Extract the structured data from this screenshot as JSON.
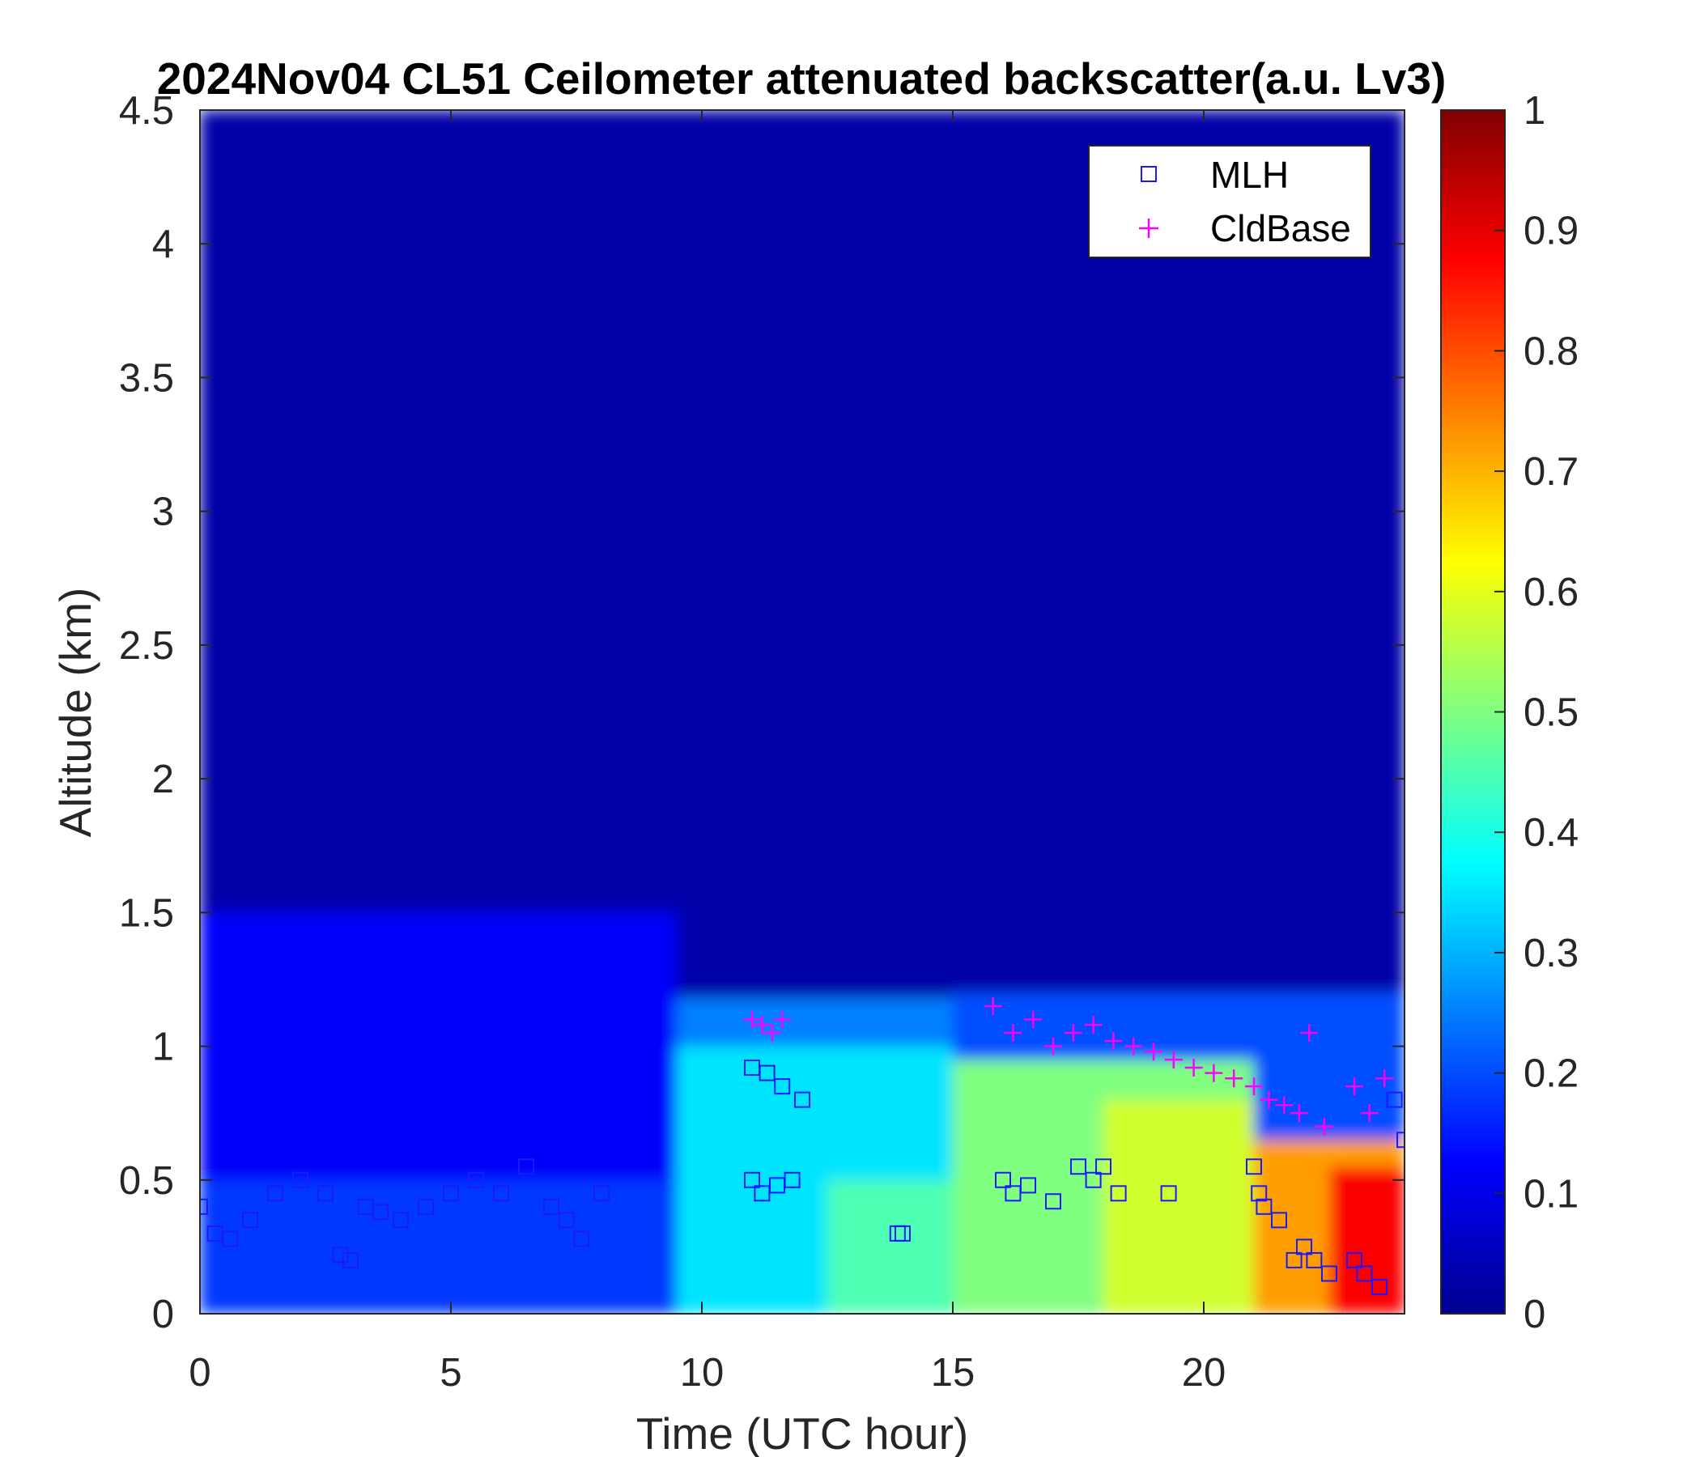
{
  "chart_data": {
    "type": "heatmap",
    "title": "2024Nov04 CL51 Ceilometer attenuated backscatter(a.u. Lv3)",
    "xlabel": "Time (UTC hour)",
    "ylabel": "Altitude (km)",
    "xlim": [
      0,
      24
    ],
    "ylim": [
      0,
      4.5
    ],
    "x_ticks": [
      "0",
      "5",
      "10",
      "15",
      "20"
    ],
    "y_ticks": [
      "0",
      "0.5",
      "1",
      "1.5",
      "2",
      "2.5",
      "3",
      "3.5",
      "4",
      "4.5"
    ],
    "colorbar": {
      "range": [
        0,
        1
      ],
      "ticks": [
        "0",
        "0.1",
        "0.2",
        "0.3",
        "0.4",
        "0.5",
        "0.6",
        "0.7",
        "0.8",
        "0.9",
        "1"
      ],
      "colormap": "jet"
    },
    "legend": {
      "placement": "top-right",
      "entries": [
        {
          "label": "MLH",
          "marker": "square",
          "color": "#1a1aff"
        },
        {
          "label": "CldBase",
          "marker": "plus",
          "color": "#ff00ff"
        }
      ]
    },
    "field_regions": [
      {
        "x0": 0,
        "x1": 24,
        "y0": 0,
        "y1": 4.5,
        "value": 0.04
      },
      {
        "x0": 0,
        "x1": 9.5,
        "y0": 0,
        "y1": 1.5,
        "value": 0.12
      },
      {
        "x0": 0,
        "x1": 9.5,
        "y0": 0,
        "y1": 0.5,
        "value": 0.18
      },
      {
        "x0": 9.5,
        "x1": 15,
        "y0": 0,
        "y1": 1.18,
        "value": 0.25
      },
      {
        "x0": 9.5,
        "x1": 15,
        "y0": 0,
        "y1": 1.0,
        "value": 0.35
      },
      {
        "x0": 12.5,
        "x1": 15,
        "y0": 0,
        "y1": 0.5,
        "value": 0.45
      },
      {
        "x0": 15,
        "x1": 24,
        "y0": 0,
        "y1": 1.2,
        "value": 0.2
      },
      {
        "x0": 15,
        "x1": 21,
        "y0": 0,
        "y1": 0.95,
        "value": 0.5
      },
      {
        "x0": 18,
        "x1": 21,
        "y0": 0,
        "y1": 0.8,
        "value": 0.58
      },
      {
        "x0": 21,
        "x1": 24,
        "y0": 0,
        "y1": 0.65,
        "value": 0.72
      },
      {
        "x0": 22.5,
        "x1": 24,
        "y0": 0,
        "y1": 0.55,
        "value": 0.88
      }
    ],
    "series": [
      {
        "name": "MLH",
        "x": [
          0,
          0.3,
          0.6,
          1.0,
          1.5,
          2.0,
          2.5,
          2.8,
          3.0,
          3.3,
          3.6,
          4.0,
          4.5,
          5.0,
          5.5,
          6.0,
          6.5,
          7.0,
          7.3,
          7.6,
          8.0,
          11.0,
          11.2,
          11.5,
          11.8,
          12.0,
          11.0,
          11.3,
          11.6,
          13.9,
          14.0,
          16.0,
          16.2,
          16.5,
          17.0,
          17.5,
          17.8,
          18.0,
          18.3,
          19.3,
          21.0,
          21.1,
          21.2,
          21.5,
          21.8,
          22.0,
          22.2,
          22.5,
          23.0,
          23.2,
          23.5,
          23.8,
          24.0
        ],
        "y": [
          0.4,
          0.3,
          0.28,
          0.35,
          0.45,
          0.5,
          0.45,
          0.22,
          0.2,
          0.4,
          0.38,
          0.35,
          0.4,
          0.45,
          0.5,
          0.45,
          0.55,
          0.4,
          0.35,
          0.28,
          0.45,
          0.5,
          0.45,
          0.48,
          0.5,
          0.8,
          0.92,
          0.9,
          0.85,
          0.3,
          0.3,
          0.5,
          0.45,
          0.48,
          0.42,
          0.55,
          0.5,
          0.55,
          0.45,
          0.45,
          0.55,
          0.45,
          0.4,
          0.35,
          0.2,
          0.25,
          0.2,
          0.15,
          0.2,
          0.15,
          0.1,
          0.8,
          0.65
        ]
      },
      {
        "name": "CldBase",
        "x": [
          11.0,
          11.2,
          11.4,
          11.6,
          15.8,
          16.2,
          16.6,
          17.0,
          17.4,
          17.8,
          18.2,
          18.6,
          19.0,
          19.4,
          19.8,
          20.2,
          20.6,
          21.0,
          21.3,
          21.6,
          21.9,
          22.1,
          22.4,
          23.0,
          23.3,
          23.6
        ],
        "y": [
          1.1,
          1.08,
          1.05,
          1.1,
          1.15,
          1.05,
          1.1,
          1.0,
          1.05,
          1.08,
          1.02,
          1.0,
          0.98,
          0.95,
          0.92,
          0.9,
          0.88,
          0.85,
          0.8,
          0.78,
          0.75,
          1.05,
          0.7,
          0.85,
          0.75,
          0.88
        ]
      }
    ]
  }
}
